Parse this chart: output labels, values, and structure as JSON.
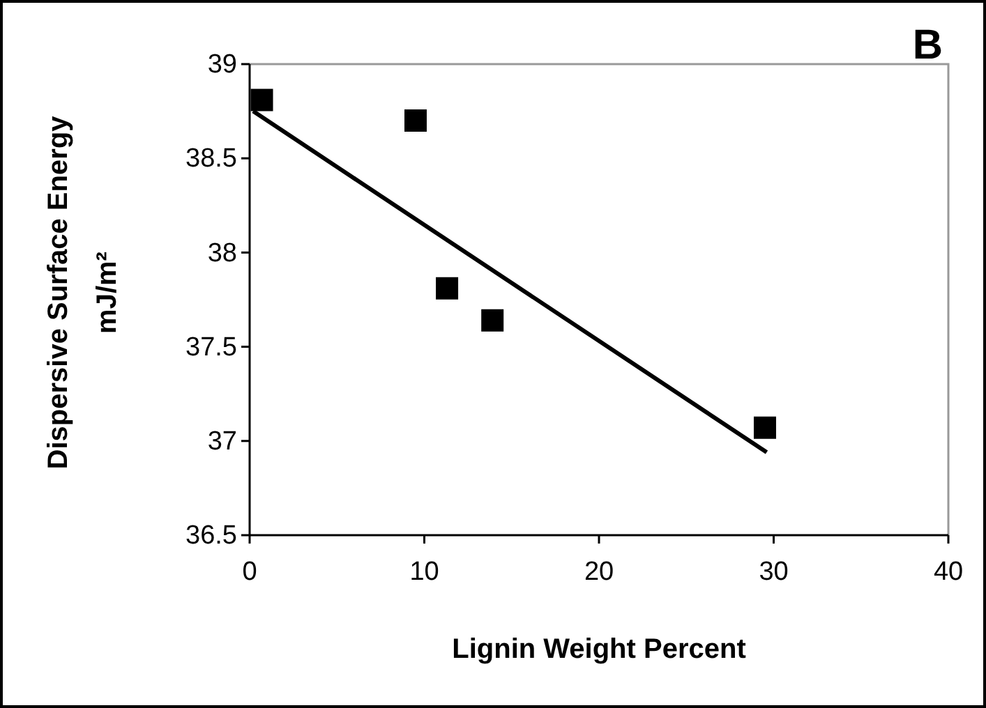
{
  "chart_data": {
    "type": "scatter",
    "title": "B",
    "xlabel": "Lignin Weight Percent",
    "ylabel": "Dispersive Surface Energy\nmJ/m²",
    "xlim": [
      0,
      40
    ],
    "xticks": [
      0,
      10,
      20,
      30,
      40
    ],
    "ylim": [
      36.5,
      39
    ],
    "yticks": [
      36.5,
      37,
      37.5,
      38,
      38.5,
      39
    ],
    "grid": false,
    "marker": "square",
    "series": [
      {
        "color": "#000000",
        "x": [
          0.7,
          9.5,
          11.3,
          13.9,
          29.5
        ],
        "values": [
          38.81,
          38.7,
          37.81,
          37.64,
          37.07
        ]
      },
      {
        "type": "line",
        "color": "#000000",
        "line_style": "solid",
        "marker": "none",
        "x": [
          0.2,
          29.6
        ],
        "values": [
          38.75,
          36.94
        ]
      }
    ]
  }
}
